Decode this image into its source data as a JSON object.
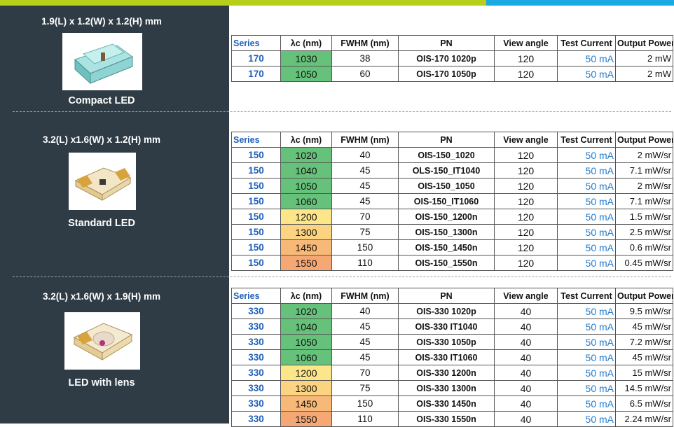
{
  "colors": {
    "top_bar_green": "#b7cf1a",
    "top_bar_blue": "#1aa9e0",
    "sidebar_bg": "#2f3c45",
    "series_text": "#1f5fb8",
    "current_text": "#1f7bd1"
  },
  "columns": [
    "Series",
    "λc (nm)",
    "FWHM (nm)",
    "PN",
    "View angle",
    "Test Current",
    "Output Power"
  ],
  "sections": [
    {
      "dimensions": "1.9(L) x 1.2(W) x 1.2(H) mm",
      "label": "Compact LED",
      "rows": [
        {
          "series": "170",
          "lambda": "1030",
          "fwhm": "38",
          "pn": "OIS-170 1020p",
          "view": "120",
          "current": "50 mA",
          "power": "2 mW",
          "lambda_color": "#66c27a"
        },
        {
          "series": "170",
          "lambda": "1050",
          "fwhm": "60",
          "pn": "OIS-170 1050p",
          "view": "120",
          "current": "50 mA",
          "power": "2 mW",
          "lambda_color": "#66c27a"
        }
      ]
    },
    {
      "dimensions": "3.2(L) x1.6(W) x 1.2(H) mm",
      "label": "Standard LED",
      "rows": [
        {
          "series": "150",
          "lambda": "1020",
          "fwhm": "40",
          "pn": "OIS-150_1020",
          "view": "120",
          "current": "50 mA",
          "power": "2 mW/sr",
          "lambda_color": "#66c27a"
        },
        {
          "series": "150",
          "lambda": "1040",
          "fwhm": "45",
          "pn": "OLS-150_IT1040",
          "view": "120",
          "current": "50 mA",
          "power": "7.1 mW/sr",
          "lambda_color": "#66c27a"
        },
        {
          "series": "150",
          "lambda": "1050",
          "fwhm": "45",
          "pn": "OIS-150_1050",
          "view": "120",
          "current": "50 mA",
          "power": "2 mW/sr",
          "lambda_color": "#66c27a"
        },
        {
          "series": "150",
          "lambda": "1060",
          "fwhm": "45",
          "pn": "OIS-150_IT1060",
          "view": "120",
          "current": "50 mA",
          "power": "7.1 mW/sr",
          "lambda_color": "#66c27a"
        },
        {
          "series": "150",
          "lambda": "1200",
          "fwhm": "70",
          "pn": "OIS-150_1200n",
          "view": "120",
          "current": "50 mA",
          "power": "1.5 mW/sr",
          "lambda_color": "#fde68a"
        },
        {
          "series": "150",
          "lambda": "1300",
          "fwhm": "75",
          "pn": "OIS-150_1300n",
          "view": "120",
          "current": "50 mA",
          "power": "2.5 mW/sr",
          "lambda_color": "#fcd380"
        },
        {
          "series": "150",
          "lambda": "1450",
          "fwhm": "150",
          "pn": "OIS-150_1450n",
          "view": "120",
          "current": "50 mA",
          "power": "0.6 mW/sr",
          "lambda_color": "#f8b877"
        },
        {
          "series": "150",
          "lambda": "1550",
          "fwhm": "110",
          "pn": "OIS-150_1550n",
          "view": "120",
          "current": "50 mA",
          "power": "0.45 mW/sr",
          "lambda_color": "#f5a873"
        }
      ]
    },
    {
      "dimensions": "3.2(L) x1.6(W) x 1.9(H) mm",
      "label": "LED with lens",
      "rows": [
        {
          "series": "330",
          "lambda": "1020",
          "fwhm": "40",
          "pn": "OIS-330 1020p",
          "view": "40",
          "current": "50 mA",
          "power": "9.5 mW/sr",
          "lambda_color": "#66c27a"
        },
        {
          "series": "330",
          "lambda": "1040",
          "fwhm": "45",
          "pn": "OIS-330 IT1040",
          "view": "40",
          "current": "50 mA",
          "power": "45 mW/sr",
          "lambda_color": "#66c27a"
        },
        {
          "series": "330",
          "lambda": "1050",
          "fwhm": "45",
          "pn": "OIS-330 1050p",
          "view": "40",
          "current": "50 mA",
          "power": "7.2 mW/sr",
          "lambda_color": "#66c27a"
        },
        {
          "series": "330",
          "lambda": "1060",
          "fwhm": "45",
          "pn": "OIS-330 IT1060",
          "view": "40",
          "current": "50 mA",
          "power": "45 mW/sr",
          "lambda_color": "#66c27a"
        },
        {
          "series": "330",
          "lambda": "1200",
          "fwhm": "70",
          "pn": "OIS-330 1200n",
          "view": "40",
          "current": "50 mA",
          "power": "15 mW/sr",
          "lambda_color": "#fde68a"
        },
        {
          "series": "330",
          "lambda": "1300",
          "fwhm": "75",
          "pn": "OIS-330 1300n",
          "view": "40",
          "current": "50 mA",
          "power": "14.5 mW/sr",
          "lambda_color": "#fcd380"
        },
        {
          "series": "330",
          "lambda": "1450",
          "fwhm": "150",
          "pn": "OIS-330 1450n",
          "view": "40",
          "current": "50 mA",
          "power": "6.5 mW/sr",
          "lambda_color": "#f8b877"
        },
        {
          "series": "330",
          "lambda": "1550",
          "fwhm": "110",
          "pn": "OIS-330 1550n",
          "view": "40",
          "current": "50 mA",
          "power": "2.24 mW/sr",
          "lambda_color": "#f5a873"
        }
      ]
    }
  ]
}
